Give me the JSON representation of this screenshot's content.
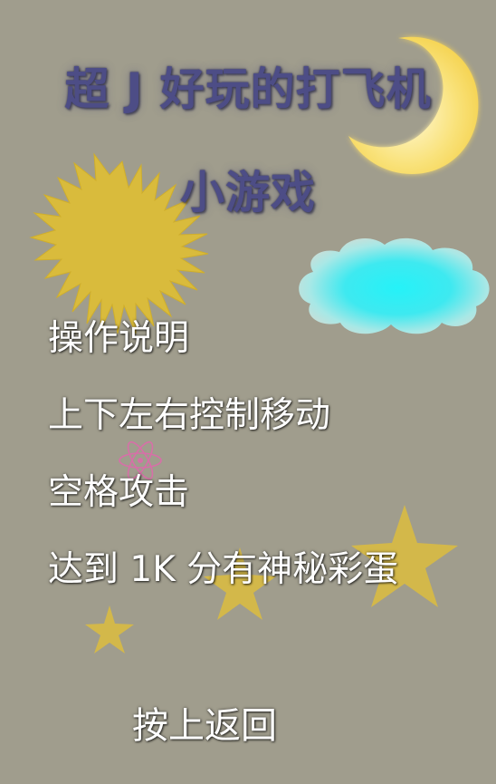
{
  "title": {
    "line1": "超 J 好玩的打飞机",
    "line2": "小游戏"
  },
  "instructions": {
    "heading": "操作说明",
    "move": "上下左右控制移动",
    "attack": "空格攻击",
    "easter_egg": "达到 1K 分有神秘彩蛋"
  },
  "back_button": {
    "label": "按上返回"
  },
  "colors": {
    "background": "#a09d8d",
    "title": "#4d4d86",
    "sun": "#d9bb3c",
    "moon": "#f7d84a",
    "cloud": "#3ff0f5",
    "star": "#d3b84a",
    "atom": "#d76fa8",
    "text": "#ffffff"
  },
  "decorations": [
    "moon-icon",
    "sun-icon",
    "cloud-icon",
    "star-icon",
    "atom-icon"
  ]
}
